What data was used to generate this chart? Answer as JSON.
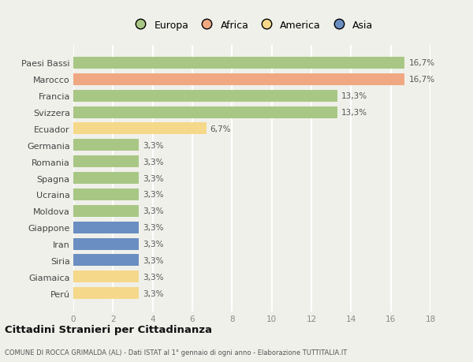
{
  "categories": [
    "Paesi Bassi",
    "Marocco",
    "Francia",
    "Svizzera",
    "Ecuador",
    "Germania",
    "Romania",
    "Spagna",
    "Ucraina",
    "Moldova",
    "Giappone",
    "Iran",
    "Siria",
    "Giamaica",
    "Perú"
  ],
  "values": [
    16.7,
    16.7,
    13.3,
    13.3,
    6.7,
    3.3,
    3.3,
    3.3,
    3.3,
    3.3,
    3.3,
    3.3,
    3.3,
    3.3,
    3.3
  ],
  "labels": [
    "16,7%",
    "16,7%",
    "13,3%",
    "13,3%",
    "6,7%",
    "3,3%",
    "3,3%",
    "3,3%",
    "3,3%",
    "3,3%",
    "3,3%",
    "3,3%",
    "3,3%",
    "3,3%",
    "3,3%"
  ],
  "continents": [
    "Europa",
    "Africa",
    "Europa",
    "Europa",
    "America",
    "Europa",
    "Europa",
    "Europa",
    "Europa",
    "Europa",
    "Asia",
    "Asia",
    "Asia",
    "America",
    "America"
  ],
  "colors": {
    "Europa": "#a8c784",
    "Africa": "#f0a882",
    "America": "#f5d88a",
    "Asia": "#6b8ec2"
  },
  "legend_order": [
    "Europa",
    "Africa",
    "America",
    "Asia"
  ],
  "xlim": [
    0,
    18
  ],
  "xticks": [
    0,
    2,
    4,
    6,
    8,
    10,
    12,
    14,
    16,
    18
  ],
  "title": "Cittadini Stranieri per Cittadinanza",
  "subtitle": "COMUNE DI ROCCA GRIMALDA (AL) - Dati ISTAT al 1° gennaio di ogni anno - Elaborazione TUTTITALIA.IT",
  "bg_color": "#f0f0eb",
  "grid_color": "#ffffff",
  "bar_height": 0.72
}
